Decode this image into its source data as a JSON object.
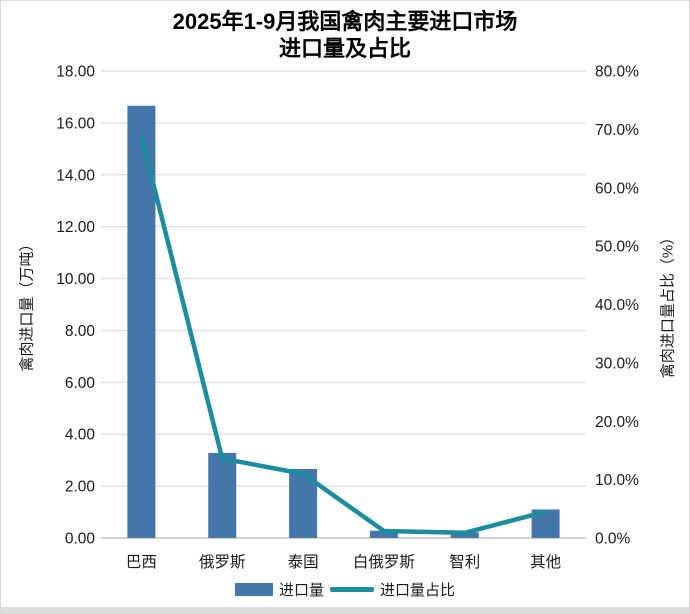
{
  "title": {
    "line1": "2025年1-9月我国禽肉主要进口市场",
    "line2": "进口量及占比"
  },
  "chart_data": {
    "type": "bar+line",
    "title": "2025年1-9月我国禽肉主要进口市场 进口量及占比",
    "title_lines": [
      "2025年1-9月我国禽肉主要进口市场",
      "进口量及占比"
    ],
    "categories": [
      "巴西",
      "俄罗斯",
      "泰国",
      "白俄罗斯",
      "智利",
      "其他"
    ],
    "series": [
      {
        "name": "进口量",
        "type": "bar",
        "axis": "left",
        "color": "#4476AB",
        "values": [
          16.66,
          3.28,
          2.66,
          0.28,
          0.22,
          1.1
        ]
      },
      {
        "name": "进口量占比",
        "type": "line",
        "axis": "right",
        "color": "#1C8C9E",
        "unit": "%",
        "values": [
          68.8,
          13.6,
          11.0,
          1.2,
          0.9,
          4.5
        ]
      }
    ],
    "left_axis": {
      "label": "禽肉进口量（万吨）",
      "min": 0,
      "max": 18,
      "step": 2,
      "decimals": 2,
      "tick_labels": [
        "0.00",
        "2.00",
        "4.00",
        "6.00",
        "8.00",
        "10.00",
        "12.00",
        "14.00",
        "16.00",
        "18.00"
      ]
    },
    "right_axis": {
      "label": "禽肉进口量占比（%）",
      "min": 0,
      "max": 80,
      "step": 10,
      "decimals": 1,
      "suffix": "%",
      "tick_labels": [
        "0.0%",
        "10.0%",
        "20.0%",
        "30.0%",
        "40.0%",
        "50.0%",
        "60.0%",
        "70.0%",
        "80.0%"
      ]
    },
    "grid": true,
    "legend_position": "bottom"
  },
  "colors": {
    "bar": "#4476AB",
    "line": "#1C8C9E",
    "gridline": "#e2e2e2",
    "axis_line": "#c2c2c2",
    "text": "#1a1a1a",
    "bottom_strip": "#dcdcdc",
    "frame_border": "#d9d9d9"
  }
}
